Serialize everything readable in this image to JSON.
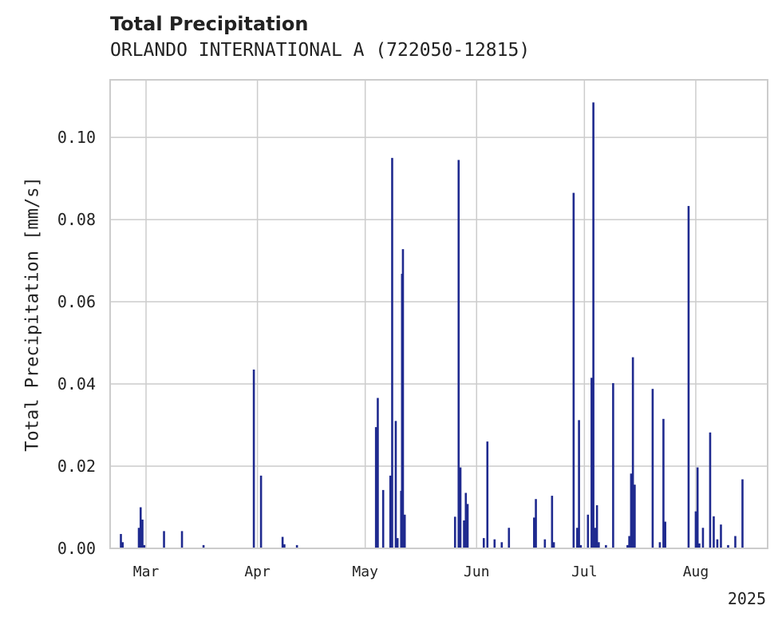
{
  "title": "Total Precipitation",
  "subtitle": "ORLANDO INTERNATIONAL A (722050-12815)",
  "colors": {
    "bar": "#1f2a8f",
    "grid": "#cccccc",
    "axis": "#cccccc",
    "text": "#222222"
  },
  "chart_data": {
    "type": "bar",
    "title": "Total Precipitation",
    "subtitle": "ORLANDO INTERNATIONAL A (722050-12815)",
    "xlabel": "",
    "ylabel": "Total Precipitation [mm/s]",
    "x_range": [
      "2025-02-19",
      "2025-08-21"
    ],
    "ylim": [
      0,
      0.114
    ],
    "year_label": "2025",
    "x_ticks": [
      {
        "date": "2025-03-01",
        "label": "Mar"
      },
      {
        "date": "2025-04-01",
        "label": "Apr"
      },
      {
        "date": "2025-05-01",
        "label": "May"
      },
      {
        "date": "2025-06-01",
        "label": "Jun"
      },
      {
        "date": "2025-07-01",
        "label": "Jul"
      },
      {
        "date": "2025-08-01",
        "label": "Aug"
      }
    ],
    "y_ticks": [
      {
        "value": 0.0,
        "label": "0.00"
      },
      {
        "value": 0.02,
        "label": "0.02"
      },
      {
        "value": 0.04,
        "label": "0.04"
      },
      {
        "value": 0.06,
        "label": "0.06"
      },
      {
        "value": 0.08,
        "label": "0.08"
      },
      {
        "value": 0.1,
        "label": "0.10"
      }
    ],
    "grid": true,
    "points": [
      {
        "x": "2025-02-22",
        "y": 0.0035
      },
      {
        "x": "2025-02-22T12",
        "y": 0.0015
      },
      {
        "x": "2025-02-27",
        "y": 0.005
      },
      {
        "x": "2025-02-27T12",
        "y": 0.01
      },
      {
        "x": "2025-02-28",
        "y": 0.007
      },
      {
        "x": "2025-02-28T12",
        "y": 0.0008
      },
      {
        "x": "2025-03-06",
        "y": 0.0042
      },
      {
        "x": "2025-03-11",
        "y": 0.0042
      },
      {
        "x": "2025-03-17",
        "y": 0.0008
      },
      {
        "x": "2025-03-31",
        "y": 0.0435
      },
      {
        "x": "2025-04-02",
        "y": 0.0177
      },
      {
        "x": "2025-04-08",
        "y": 0.0028
      },
      {
        "x": "2025-04-08T12",
        "y": 0.001
      },
      {
        "x": "2025-04-12",
        "y": 0.0008
      },
      {
        "x": "2025-05-04",
        "y": 0.0295
      },
      {
        "x": "2025-05-04T12",
        "y": 0.0366
      },
      {
        "x": "2025-05-06",
        "y": 0.0142
      },
      {
        "x": "2025-05-08",
        "y": 0.0177
      },
      {
        "x": "2025-05-08T12",
        "y": 0.095
      },
      {
        "x": "2025-05-09T12",
        "y": 0.031
      },
      {
        "x": "2025-05-10",
        "y": 0.0025
      },
      {
        "x": "2025-05-11",
        "y": 0.014
      },
      {
        "x": "2025-05-11T06",
        "y": 0.0668
      },
      {
        "x": "2025-05-11T12",
        "y": 0.0728
      },
      {
        "x": "2025-05-12",
        "y": 0.0082
      },
      {
        "x": "2025-05-26",
        "y": 0.0077
      },
      {
        "x": "2025-05-27",
        "y": 0.0945
      },
      {
        "x": "2025-05-27T12",
        "y": 0.0197
      },
      {
        "x": "2025-05-28T12",
        "y": 0.0068
      },
      {
        "x": "2025-05-29",
        "y": 0.0135
      },
      {
        "x": "2025-05-29T12",
        "y": 0.0108
      },
      {
        "x": "2025-06-03",
        "y": 0.0025
      },
      {
        "x": "2025-06-04",
        "y": 0.026
      },
      {
        "x": "2025-06-06",
        "y": 0.0022
      },
      {
        "x": "2025-06-08",
        "y": 0.0015
      },
      {
        "x": "2025-06-10",
        "y": 0.005
      },
      {
        "x": "2025-06-17",
        "y": 0.0075
      },
      {
        "x": "2025-06-17T12",
        "y": 0.012
      },
      {
        "x": "2025-06-20",
        "y": 0.0022
      },
      {
        "x": "2025-06-22",
        "y": 0.0128
      },
      {
        "x": "2025-06-22T12",
        "y": 0.0015
      },
      {
        "x": "2025-06-28",
        "y": 0.0865
      },
      {
        "x": "2025-06-29",
        "y": 0.005
      },
      {
        "x": "2025-06-29T12",
        "y": 0.0312
      },
      {
        "x": "2025-06-30",
        "y": 0.0008
      },
      {
        "x": "2025-07-02",
        "y": 0.0082
      },
      {
        "x": "2025-07-03",
        "y": 0.0415
      },
      {
        "x": "2025-07-03T12",
        "y": 0.1085
      },
      {
        "x": "2025-07-04",
        "y": 0.005
      },
      {
        "x": "2025-07-04T12",
        "y": 0.0105
      },
      {
        "x": "2025-07-05",
        "y": 0.0015
      },
      {
        "x": "2025-07-07",
        "y": 0.0008
      },
      {
        "x": "2025-07-09",
        "y": 0.0402
      },
      {
        "x": "2025-07-13",
        "y": 0.0008
      },
      {
        "x": "2025-07-13T12",
        "y": 0.003
      },
      {
        "x": "2025-07-14",
        "y": 0.0182
      },
      {
        "x": "2025-07-14T12",
        "y": 0.0465
      },
      {
        "x": "2025-07-15",
        "y": 0.0155
      },
      {
        "x": "2025-07-20",
        "y": 0.0388
      },
      {
        "x": "2025-07-22",
        "y": 0.0015
      },
      {
        "x": "2025-07-23",
        "y": 0.0315
      },
      {
        "x": "2025-07-23T12",
        "y": 0.0065
      },
      {
        "x": "2025-07-30",
        "y": 0.0833
      },
      {
        "x": "2025-08-01",
        "y": 0.009
      },
      {
        "x": "2025-08-01T12",
        "y": 0.0197
      },
      {
        "x": "2025-08-02",
        "y": 0.0012
      },
      {
        "x": "2025-08-03",
        "y": 0.005
      },
      {
        "x": "2025-08-05",
        "y": 0.0282
      },
      {
        "x": "2025-08-06",
        "y": 0.0078
      },
      {
        "x": "2025-08-07",
        "y": 0.0022
      },
      {
        "x": "2025-08-08",
        "y": 0.0058
      },
      {
        "x": "2025-08-10",
        "y": 0.0008
      },
      {
        "x": "2025-08-12",
        "y": 0.003
      },
      {
        "x": "2025-08-14",
        "y": 0.0168
      }
    ]
  }
}
